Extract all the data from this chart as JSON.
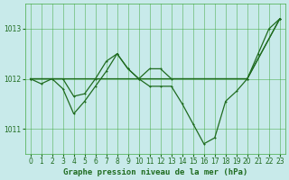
{
  "title": "Graphe pression niveau de la mer (hPa)",
  "background_color": "#c8eaea",
  "grid_color": "#44aa44",
  "line_color": "#1f6b1f",
  "xlim": [
    -0.5,
    23.5
  ],
  "ylim": [
    1010.5,
    1013.5
  ],
  "yticks": [
    1011,
    1012,
    1013
  ],
  "xticks": [
    0,
    1,
    2,
    3,
    4,
    5,
    6,
    7,
    8,
    9,
    10,
    11,
    12,
    13,
    14,
    15,
    16,
    17,
    18,
    19,
    20,
    21,
    22,
    23
  ],
  "series1_x": [
    0,
    3,
    4,
    5,
    6,
    7,
    8,
    9,
    10,
    11,
    12,
    13,
    20,
    23
  ],
  "series1_y": [
    1012.0,
    1012.0,
    1011.65,
    1011.7,
    1012.0,
    1012.35,
    1012.5,
    1012.2,
    1012.0,
    1012.2,
    1012.2,
    1012.0,
    1012.0,
    1013.2
  ],
  "series2_x": [
    0,
    1,
    2,
    3,
    4,
    5,
    6,
    7,
    8,
    9,
    10,
    11,
    12,
    13,
    14,
    15,
    16,
    17,
    18,
    19,
    20,
    21,
    22,
    23
  ],
  "series2_y": [
    1012.0,
    1011.9,
    1012.0,
    1011.8,
    1011.3,
    1011.55,
    1011.85,
    1012.15,
    1012.5,
    1012.2,
    1012.0,
    1011.85,
    1011.85,
    1011.85,
    1011.5,
    1011.1,
    1010.7,
    1010.82,
    1011.55,
    1011.75,
    1012.0,
    1012.5,
    1013.0,
    1013.2
  ],
  "series3_x": [
    0,
    20,
    23
  ],
  "series3_y": [
    1012.0,
    1012.0,
    1013.2
  ],
  "title_fontsize": 6.5,
  "tick_fontsize": 5.5
}
